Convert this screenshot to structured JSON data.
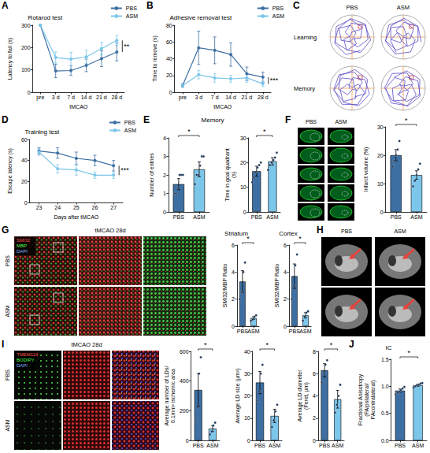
{
  "chart_data": [
    {
      "panel": "A",
      "type": "line",
      "title": "Rotarod test",
      "categories": [
        "pre",
        "3 d",
        "7 d",
        "14 d",
        "21 d",
        "28 d"
      ],
      "xlabel": "tMCAO",
      "ylabel": "Latency to fail (s)",
      "ylim": [
        0,
        300
      ],
      "yticks": [
        0,
        100,
        200,
        300
      ],
      "grid": false,
      "legend": "top-right",
      "annotation": "**",
      "series": [
        {
          "name": "PBS",
          "color": "#3d6fa3",
          "marker": "circle",
          "values": [
            300,
            95,
            97,
            120,
            150,
            180
          ],
          "errors": [
            0,
            30,
            22,
            28,
            35,
            40
          ]
        },
        {
          "name": "ASM",
          "color": "#7cc6ea",
          "marker": "circle",
          "values": [
            300,
            155,
            148,
            158,
            195,
            232
          ],
          "errors": [
            0,
            25,
            30,
            30,
            28,
            22
          ]
        }
      ]
    },
    {
      "panel": "B",
      "type": "line",
      "title": "Adhesive removal test",
      "categories": [
        "pre",
        "3 d",
        "7 d",
        "14 d",
        "21 d",
        "28 d"
      ],
      "xlabel": "tMCAO",
      "ylabel": "Time to remove (s)",
      "ylim": [
        0,
        80
      ],
      "yticks": [
        0,
        20,
        40,
        60,
        80
      ],
      "grid": false,
      "legend": "top-right",
      "annotation": "***",
      "series": [
        {
          "name": "PBS",
          "color": "#3d6fa3",
          "marker": "circle",
          "values": [
            8,
            53,
            50,
            45,
            22,
            18
          ],
          "errors": [
            2,
            20,
            16,
            14,
            8,
            6
          ]
        },
        {
          "name": "ASM",
          "color": "#7cc6ea",
          "marker": "circle",
          "values": [
            8,
            21,
            17,
            16,
            17,
            10
          ],
          "errors": [
            2,
            5,
            5,
            4,
            5,
            3
          ]
        }
      ]
    },
    {
      "panel": "D",
      "type": "line",
      "title": "Training test",
      "categories": [
        "23",
        "24",
        "25",
        "26",
        "27"
      ],
      "xlabel": "Days after tMCAO",
      "ylabel": "Escape latency (s)",
      "ylim": [
        0,
        60
      ],
      "yticks": [
        0,
        20,
        40,
        60
      ],
      "grid": false,
      "legend": "top-right",
      "annotation": "***",
      "series": [
        {
          "name": "PBS",
          "color": "#3d6fa3",
          "marker": "circle",
          "values": [
            49,
            47,
            42,
            40,
            35
          ],
          "errors": [
            3,
            5,
            6,
            5,
            5
          ]
        },
        {
          "name": "ASM",
          "color": "#7cc6ea",
          "marker": "circle",
          "values": [
            48,
            32,
            31,
            26,
            26
          ],
          "errors": [
            3,
            4,
            5,
            3,
            3
          ]
        }
      ]
    },
    {
      "panel": "E",
      "group_title": "Memory",
      "type": "bar",
      "categories": [
        "PBS",
        "ASM"
      ],
      "ylabel": "Number of entries",
      "ylim": [
        0,
        4
      ],
      "yticks": [
        0,
        1,
        2,
        3,
        4
      ],
      "grid": false,
      "annotation": "*",
      "values": [
        1.5,
        2.3
      ],
      "colors": [
        "#3d6fa3",
        "#7cc6ea"
      ],
      "errors": [
        0.3,
        0.4
      ],
      "points": [
        [
          1,
          1,
          1.3,
          2,
          2,
          2
        ],
        [
          1.5,
          2,
          2,
          2.5,
          3,
          3
        ]
      ]
    },
    {
      "type": "bar",
      "categories": [
        "PBS",
        "ASM"
      ],
      "ylabel": "Time in goal quadrant (s)",
      "ylim": [
        0,
        30
      ],
      "yticks": [
        0,
        10,
        20,
        30
      ],
      "grid": false,
      "annotation": "*",
      "values": [
        16.5,
        20.5
      ],
      "colors": [
        "#3d6fa3",
        "#7cc6ea"
      ],
      "errors": [
        2,
        1.5
      ],
      "points": [
        [
          12,
          14,
          16,
          18,
          19,
          20
        ],
        [
          17,
          19,
          20,
          21,
          22,
          24
        ]
      ]
    },
    {
      "type": "bar",
      "categories": [
        "PBS",
        "ASM"
      ],
      "ylabel": "Infarct volume (%)",
      "ylim": [
        0,
        30
      ],
      "yticks": [
        0,
        10,
        20,
        30
      ],
      "grid": false,
      "annotation": "*",
      "values": [
        20,
        13
      ],
      "colors": [
        "#3d6fa3",
        "#7cc6ea"
      ],
      "errors": [
        2,
        1.5
      ],
      "points": [
        [
          16,
          18,
          20,
          22,
          25
        ],
        [
          9,
          11,
          13,
          15,
          17
        ]
      ]
    },
    {
      "type": "bar",
      "title": "Striatum",
      "categories": [
        "PBS",
        "ASM"
      ],
      "ylabel": "SMI32/MBP Ratio",
      "ylim": [
        0,
        6
      ],
      "yticks": [
        0,
        2,
        4,
        6
      ],
      "grid": false,
      "annotation": "*",
      "values": [
        3.3,
        0.6
      ],
      "colors": [
        "#3d6fa3",
        "#7cc6ea"
      ],
      "errors": [
        0.8,
        0.1
      ],
      "points": [
        [
          2,
          2.5,
          4,
          4.7
        ],
        [
          0.4,
          0.5,
          0.7,
          0.8
        ]
      ]
    },
    {
      "type": "bar",
      "title": "Cortex",
      "categories": [
        "PBS",
        "ASM"
      ],
      "ylabel": "SMI32/MBP Ratio",
      "ylim": [
        0,
        6
      ],
      "yticks": [
        0,
        2,
        4,
        6
      ],
      "grid": false,
      "annotation": "*",
      "values": [
        3.7,
        0.8
      ],
      "colors": [
        "#3d6fa3",
        "#7cc6ea"
      ],
      "errors": [
        0.9,
        0.2
      ],
      "points": [
        [
          2,
          3,
          4.5,
          5.3
        ],
        [
          0.4,
          0.7,
          1,
          1.1
        ]
      ]
    },
    {
      "type": "bar",
      "categories": [
        "PBS",
        "ASM"
      ],
      "ylabel": "Average number of LDs/ 0.1mm² ischemic area",
      "ylim": [
        0,
        600
      ],
      "yticks": [
        0,
        200,
        400,
        600
      ],
      "grid": false,
      "annotation": "*",
      "values": [
        340,
        80
      ],
      "colors": [
        "#3d6fa3",
        "#7cc6ea"
      ],
      "errors": [
        110,
        20
      ],
      "points": [
        [
          130,
          220,
          450,
          560
        ],
        [
          40,
          60,
          100,
          120
        ]
      ]
    },
    {
      "type": "bar",
      "categories": [
        "PBS",
        "ASM"
      ],
      "ylabel": "Average LD size (μm²)",
      "ylim": [
        0,
        40
      ],
      "yticks": [
        0,
        10,
        20,
        30,
        40
      ],
      "grid": false,
      "annotation": "*",
      "values": [
        26,
        11
      ],
      "colors": [
        "#3d6fa3",
        "#7cc6ea"
      ],
      "errors": [
        5,
        3
      ],
      "points": [
        [
          18,
          22,
          30,
          34
        ],
        [
          6,
          9,
          13,
          16
        ]
      ]
    },
    {
      "type": "bar",
      "categories": [
        "PBS",
        "ASM"
      ],
      "ylabel": "Average LD diameter (Feret, μm)",
      "ylim": [
        0,
        8
      ],
      "yticks": [
        0,
        2,
        4,
        6,
        8
      ],
      "grid": false,
      "annotation": "*",
      "values": [
        6.3,
        3.7
      ],
      "colors": [
        "#3d6fa3",
        "#7cc6ea"
      ],
      "errors": [
        0.6,
        0.8
      ],
      "points": [
        [
          5.2,
          6,
          6.8,
          7.2
        ],
        [
          2.5,
          3.2,
          4,
          5
        ]
      ]
    },
    {
      "panel": "J",
      "type": "bar",
      "title": "IC",
      "categories": [
        "PBS",
        "ASM"
      ],
      "ylabel": "Fractional Anisotropy (FAipsilateral/FAcontralateral)",
      "ylim": [
        0,
        1.5
      ],
      "yticks": [
        {
          "value": 0,
          "label": "0.0"
        },
        {
          "value": 0.5,
          "label": "0.5"
        },
        {
          "value": 1,
          "label": "1.0"
        },
        {
          "value": 1.5,
          "label": "1.5"
        }
      ],
      "grid": false,
      "annotation": "*",
      "values": [
        0.92,
        1.02
      ],
      "colors": [
        "#3d6fa3",
        "#7cc6ea"
      ],
      "errors": [
        0.03,
        0.02
      ],
      "points": [
        [
          0.85,
          0.88,
          0.9,
          0.93,
          0.96,
          0.99
        ],
        [
          0.98,
          1,
          1.02,
          1.03,
          1.05,
          1.06
        ]
      ]
    }
  ],
  "images": [
    {
      "panel": "C",
      "columns": [
        "PBS",
        "ASM"
      ],
      "rows": [
        "Learning",
        "Memory"
      ]
    },
    {
      "panel": "F",
      "columns": [
        "PBS",
        "ASM"
      ]
    },
    {
      "panel": "G",
      "title": "tMCAO 28d",
      "rows": [
        "PBS",
        "ASM"
      ],
      "stains": [
        "SMI32",
        "MBP",
        "DAPI"
      ]
    },
    {
      "panel": "H",
      "columns": [
        "PBS",
        "ASM"
      ]
    },
    {
      "panel": "I",
      "title": "tMCAO 28d",
      "rows": [
        "PBS",
        "ASM"
      ],
      "stains": [
        "TMEM119",
        "BODIPY",
        "DAPI"
      ]
    }
  ]
}
